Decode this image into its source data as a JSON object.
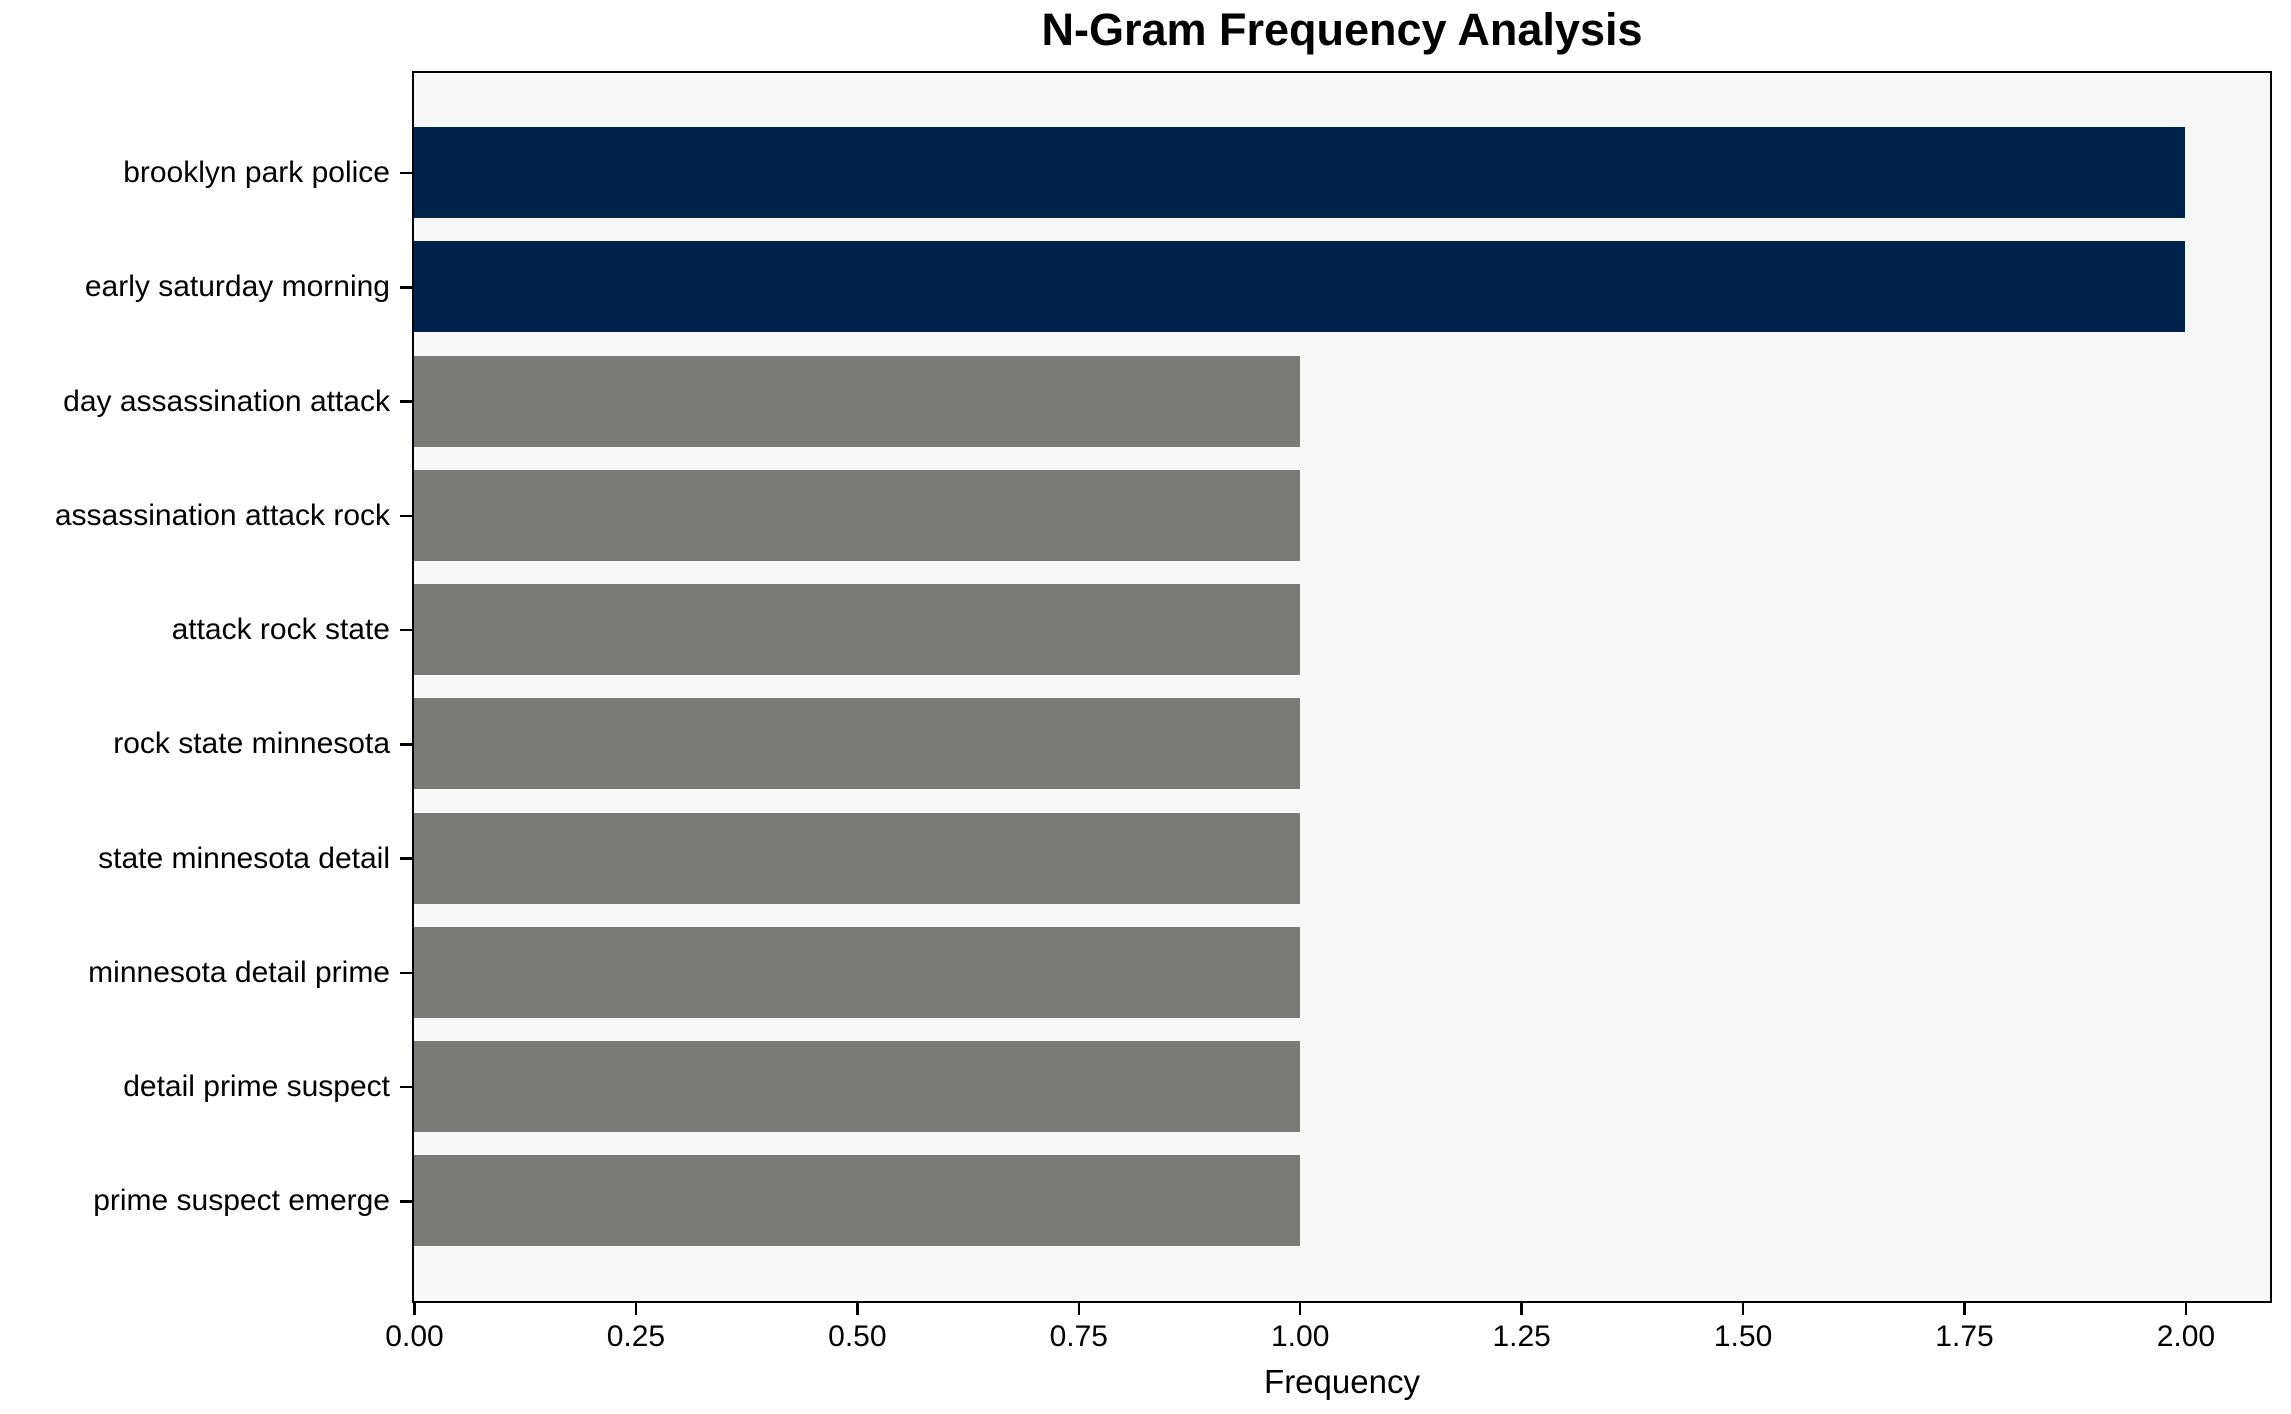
{
  "chart_data": {
    "type": "bar",
    "orientation": "horizontal",
    "title": "N-Gram Frequency Analysis",
    "xlabel": "Frequency",
    "ylabel": "",
    "categories": [
      "brooklyn park police",
      "early saturday morning",
      "day assassination attack",
      "assassination attack rock",
      "attack rock state",
      "rock state minnesota",
      "state minnesota detail",
      "minnesota detail prime",
      "detail prime suspect",
      "prime suspect emerge"
    ],
    "values": [
      2,
      2,
      1,
      1,
      1,
      1,
      1,
      1,
      1,
      1
    ],
    "bar_colors": [
      "#00234e",
      "#00234e",
      "#7a7a77",
      "#7a7a77",
      "#7a7a77",
      "#7a7a77",
      "#7a7a77",
      "#7a7a77",
      "#7a7a77",
      "#7a7a77"
    ],
    "xlim": [
      0,
      2.1
    ],
    "xticks": [
      {
        "value": 0,
        "label": "0.00"
      },
      {
        "value": 0.25,
        "label": "0.25"
      },
      {
        "value": 0.5,
        "label": "0.50"
      },
      {
        "value": 0.75,
        "label": "0.75"
      },
      {
        "value": 1,
        "label": "1.00"
      },
      {
        "value": 1.25,
        "label": "1.25"
      },
      {
        "value": 1.5,
        "label": "1.50"
      },
      {
        "value": 1.75,
        "label": "1.75"
      },
      {
        "value": 2,
        "label": "2.00"
      }
    ],
    "grid": false,
    "legend": false,
    "colors": {
      "highlight_bar": "#00234e",
      "default_bar": "#7a7a77",
      "plot_background": "#f7f7f7",
      "figure_background": "#ffffff",
      "spine": "#000000",
      "text": "#000000"
    }
  }
}
